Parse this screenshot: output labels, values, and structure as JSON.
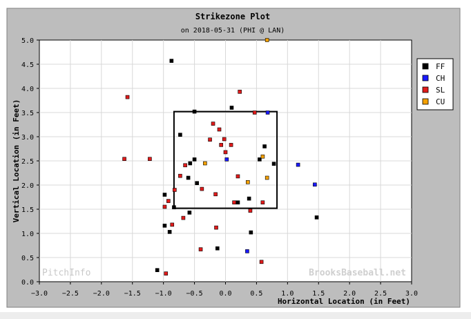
{
  "colors": {
    "frame_bg": "#bdbdbd",
    "frame_border": "#808080",
    "plot_bg": "#ffffff",
    "grid": "#d8d8d8",
    "zone": "#000000",
    "FF": "#000000",
    "CH": "#1a1aff",
    "SL": "#e01b1b",
    "CU": "#f5a100"
  },
  "chart_data": {
    "type": "scatter",
    "title": "Strikezone Plot",
    "subtitle": "on 2018-05-31 (PHI @ LAN)",
    "xlabel": "Horizontal Location (in Feet)",
    "ylabel": "Vertical Location (in Feet)",
    "xlim": [
      -3.0,
      3.0
    ],
    "ylim": [
      0.0,
      5.0
    ],
    "xticks": [
      -3.0,
      -2.5,
      -2.0,
      -1.5,
      -1.0,
      -0.5,
      0.0,
      0.5,
      1.0,
      1.5,
      2.0,
      2.5,
      3.0
    ],
    "xtick_labels": [
      "−3.0",
      "−2.5",
      "−2.0",
      "−1.5",
      "−1.0",
      "−0.5",
      "0.0",
      "0.5",
      "1.0",
      "1.5",
      "2.0",
      "2.5",
      "3.0"
    ],
    "yticks": [
      0.0,
      0.5,
      1.0,
      1.5,
      2.0,
      2.5,
      3.0,
      3.5,
      4.0,
      4.5,
      5.0
    ],
    "ytick_labels": [
      "0.0",
      "0.5",
      "1.0",
      "1.5",
      "2.0",
      "2.5",
      "3.0",
      "3.5",
      "4.0",
      "4.5",
      "5.0"
    ],
    "grid": true,
    "legend_position": "right",
    "strike_zone": {
      "x0": -0.83,
      "x1": 0.83,
      "y0": 1.52,
      "y1": 3.52
    },
    "watermarks": {
      "left": "PitchInfo",
      "right": "BrooksBaseball.net"
    },
    "series": [
      {
        "name": "FF",
        "points": [
          [
            -0.87,
            4.57
          ],
          [
            0.1,
            3.6
          ],
          [
            -0.5,
            3.52
          ],
          [
            -0.73,
            3.04
          ],
          [
            0.63,
            2.8
          ],
          [
            0.55,
            2.53
          ],
          [
            0.78,
            2.44
          ],
          [
            -0.5,
            2.53
          ],
          [
            -0.57,
            2.45
          ],
          [
            -0.6,
            2.15
          ],
          [
            -0.46,
            2.04
          ],
          [
            0.38,
            1.72
          ],
          [
            0.2,
            1.64
          ],
          [
            -0.83,
            1.54
          ],
          [
            -0.58,
            1.43
          ],
          [
            -0.98,
            1.8
          ],
          [
            -0.98,
            1.16
          ],
          [
            -0.9,
            1.03
          ],
          [
            0.41,
            1.02
          ],
          [
            -0.13,
            0.69
          ],
          [
            -1.1,
            0.24
          ],
          [
            1.47,
            1.33
          ]
        ]
      },
      {
        "name": "CH",
        "points": [
          [
            0.68,
            3.5
          ],
          [
            0.02,
            2.53
          ],
          [
            1.17,
            2.42
          ],
          [
            1.44,
            2.01
          ],
          [
            0.35,
            0.63
          ]
        ]
      },
      {
        "name": "SL",
        "points": [
          [
            -1.58,
            3.82
          ],
          [
            0.23,
            3.93
          ],
          [
            0.47,
            3.5
          ],
          [
            -0.2,
            3.27
          ],
          [
            -0.1,
            3.15
          ],
          [
            -0.25,
            2.94
          ],
          [
            -0.02,
            2.95
          ],
          [
            0.09,
            2.83
          ],
          [
            -0.07,
            2.83
          ],
          [
            0.0,
            2.68
          ],
          [
            -1.63,
            2.54
          ],
          [
            -1.22,
            2.54
          ],
          [
            -0.65,
            2.41
          ],
          [
            -0.73,
            2.19
          ],
          [
            -0.82,
            1.9
          ],
          [
            -0.38,
            1.92
          ],
          [
            0.2,
            2.18
          ],
          [
            -0.16,
            1.81
          ],
          [
            0.14,
            1.64
          ],
          [
            0.6,
            1.64
          ],
          [
            -0.92,
            1.67
          ],
          [
            -0.98,
            1.55
          ],
          [
            0.4,
            1.47
          ],
          [
            -0.68,
            1.32
          ],
          [
            -0.86,
            1.18
          ],
          [
            -0.15,
            1.12
          ],
          [
            -0.4,
            0.67
          ],
          [
            0.58,
            0.41
          ],
          [
            -0.96,
            0.17
          ]
        ]
      },
      {
        "name": "CU",
        "points": [
          [
            0.67,
            5.0
          ],
          [
            -0.33,
            2.45
          ],
          [
            0.6,
            2.59
          ],
          [
            0.36,
            2.06
          ],
          [
            0.67,
            2.15
          ]
        ]
      }
    ]
  }
}
